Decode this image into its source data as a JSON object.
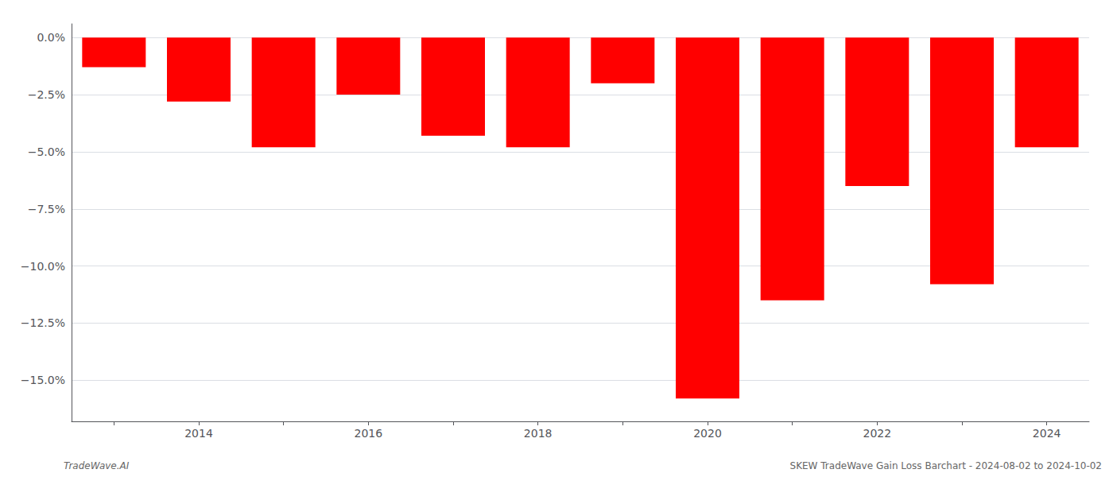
{
  "chart_data": {
    "type": "bar",
    "categories": [
      null,
      "2014",
      null,
      "2016",
      null,
      "2018",
      null,
      "2020",
      null,
      "2022",
      null,
      "2024"
    ],
    "values": [
      -1.3,
      -2.8,
      -4.8,
      -2.5,
      -4.3,
      -4.8,
      -2.0,
      -15.8,
      -11.5,
      -6.5,
      -10.8,
      -4.8
    ],
    "color": "#ff0000",
    "ylim": [
      -16.8,
      0.6
    ],
    "yticks": [
      {
        "value": 0.0,
        "label": "0.0%"
      },
      {
        "value": -2.5,
        "label": "−2.5%"
      },
      {
        "value": -5.0,
        "label": "−5.0%"
      },
      {
        "value": -7.5,
        "label": "−7.5%"
      },
      {
        "value": -10.0,
        "label": "−10.0%"
      },
      {
        "value": -12.5,
        "label": "−12.5%"
      },
      {
        "value": -15.0,
        "label": "−15.0%"
      }
    ],
    "grid": true,
    "annotations": [
      "TradeWave.AI",
      "SKEW TradeWave Gain Loss Barchart - 2024-08-02 to 2024-10-02"
    ]
  }
}
